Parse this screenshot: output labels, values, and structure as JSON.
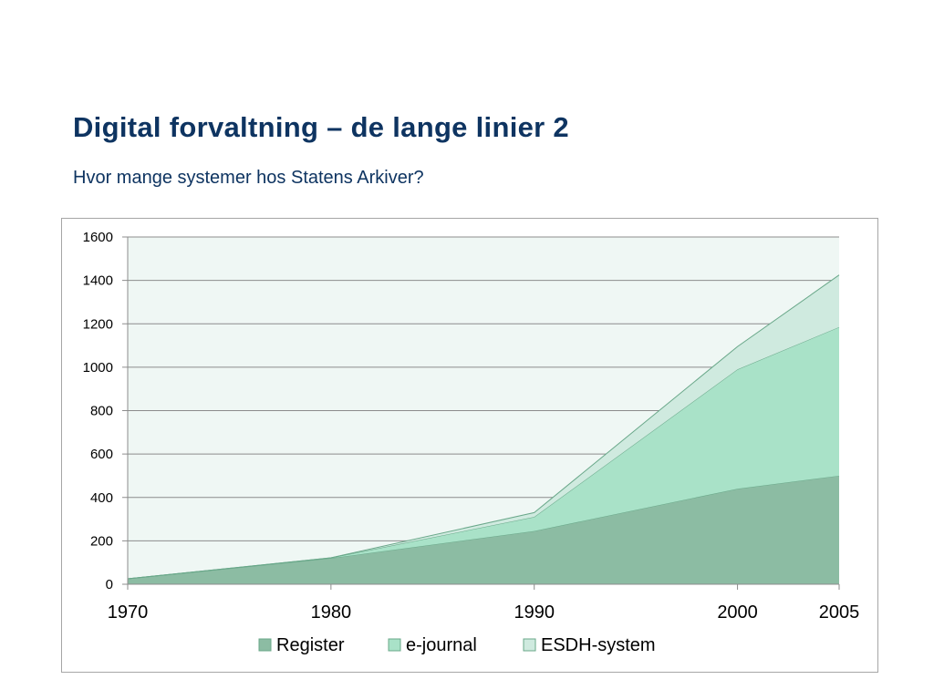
{
  "slide": {
    "title": "Digital forvaltning – de lange linier 2",
    "subtitle": "Hvor mange systemer hos Statens Arkiver?"
  },
  "colors": {
    "title": "#0e3461",
    "plot_background": "#eff7f4",
    "gridline": "#8c8c8c"
  },
  "chart_data": {
    "type": "area",
    "stacked": true,
    "title": "",
    "xlabel": "",
    "ylabel": "",
    "x": [
      1970,
      1980,
      1990,
      2000,
      2005
    ],
    "x_tick_labels": [
      "1970",
      "1980",
      "1990",
      "2000",
      "2005"
    ],
    "ylim": [
      0,
      1600
    ],
    "y_ticks": [
      0,
      200,
      400,
      600,
      800,
      1000,
      1200,
      1400,
      1600
    ],
    "grid": true,
    "legend_position": "bottom",
    "series": [
      {
        "name": "Register",
        "values": [
          25,
          120,
          245,
          440,
          500
        ],
        "color": "#8cbca3"
      },
      {
        "name": "e-journal",
        "values": [
          0,
          2,
          65,
          550,
          685
        ],
        "color": "#a9e2c8"
      },
      {
        "name": "ESDH-system",
        "values": [
          0,
          0,
          20,
          105,
          240
        ],
        "color": "#cfeadf"
      }
    ]
  }
}
